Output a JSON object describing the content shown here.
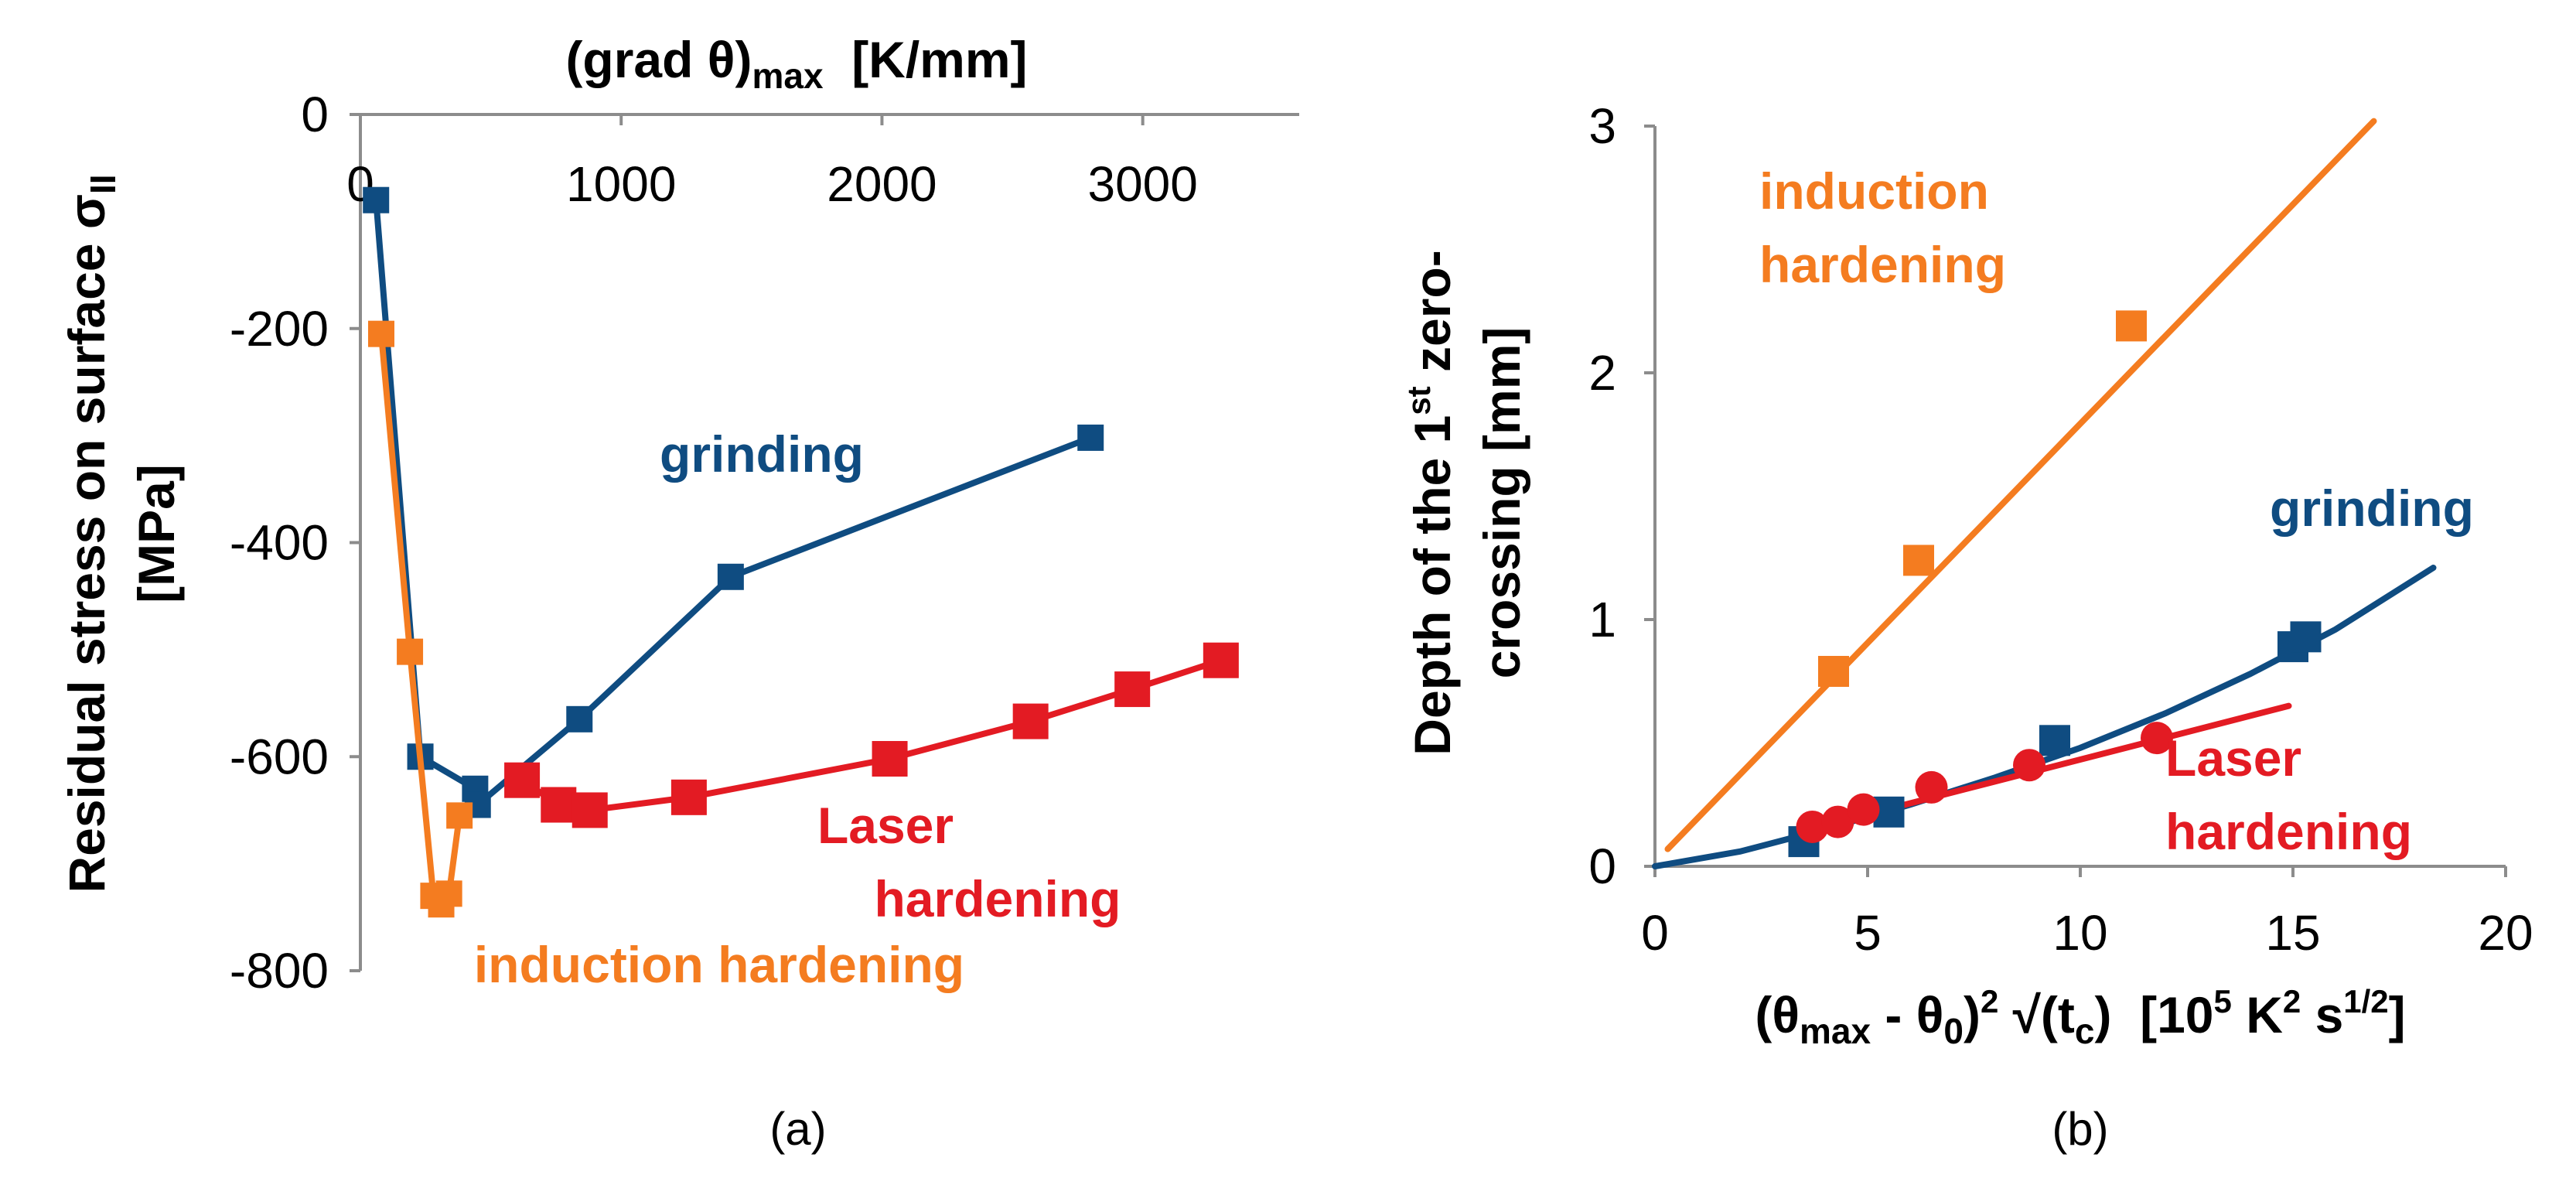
{
  "colors": {
    "grinding": "#0f4c81",
    "induction": "#f47c20",
    "laser": "#e31b23",
    "axis": "#8c8c8c"
  },
  "chart_data": [
    {
      "id": "a",
      "type": "line",
      "caption": "(a)",
      "xlabel": {
        "main": "(grad θ)",
        "sub": "max",
        "rest": "  [K/mm]"
      },
      "ylabel": {
        "line1": "Residual stress on surface σ",
        "line1_sub": "II",
        "line2": "[MPa]"
      },
      "x_ticks": [
        "0",
        "1000",
        "2000",
        "3000"
      ],
      "y_ticks": [
        "0",
        "-200",
        "-400",
        "-600",
        "-800"
      ],
      "xlim": [
        0,
        3600
      ],
      "ylim": [
        -800,
        0
      ],
      "series": [
        {
          "name": "grinding",
          "label": "grinding",
          "color": "#0f4c81",
          "x": [
            60,
            230,
            440,
            450,
            840,
            1420,
            2800
          ],
          "y": [
            -80,
            -600,
            -630,
            -645,
            -565,
            -432,
            -302
          ]
        },
        {
          "name": "induction hardening",
          "label": "induction hardening",
          "color": "#f47c20",
          "x": [
            80,
            190,
            280,
            310,
            340,
            380
          ],
          "y": [
            -205,
            -502,
            -730,
            -738,
            -728,
            -655
          ]
        },
        {
          "name": "Laser hardening",
          "label": [
            "Laser",
            "hardening"
          ],
          "color": "#e31b23",
          "x": [
            620,
            760,
            880,
            1260,
            2030,
            2570,
            2960,
            3300
          ],
          "y": [
            -622,
            -645,
            -650,
            -638,
            -602,
            -567,
            -537,
            -510
          ]
        }
      ]
    },
    {
      "id": "b",
      "type": "line",
      "caption": "(b)",
      "xlabel": {
        "p1": "(θ",
        "s1": "max",
        "p2": " - θ",
        "s2": "0",
        "p3": ")",
        "s3": "2",
        "p4": " √(t",
        "s4": "c",
        "p5": ")  [10",
        "s5": "5",
        "p6": " K",
        "s6": "2",
        "p7": " s",
        "s7": "1/2",
        "p8": "]"
      },
      "ylabel": {
        "line1_a": "Depth of the 1",
        "line1_sup": "st",
        "line1_b": " zero-",
        "line2": "crossing [mm]"
      },
      "x_ticks": [
        "0",
        "5",
        "10",
        "15",
        "20"
      ],
      "y_ticks": [
        "0",
        "1",
        "2",
        "3"
      ],
      "xlim": [
        0,
        20
      ],
      "ylim": [
        0,
        3
      ],
      "series": [
        {
          "name": "induction hardening",
          "label": [
            "induction",
            "hardening"
          ],
          "color": "#f47c20",
          "x": [
            4.2,
            6.2,
            11.2
          ],
          "y": [
            0.79,
            1.24,
            2.19
          ],
          "fit": {
            "x": [
              0.3,
              16.9
            ],
            "y": [
              0.07,
              3.02
            ]
          }
        },
        {
          "name": "grinding",
          "label": "grinding",
          "color": "#0f4c81",
          "x": [
            3.5,
            5.5,
            9.4,
            15.0,
            15.3
          ],
          "y": [
            0.1,
            0.22,
            0.51,
            0.89,
            0.93
          ],
          "fit": {
            "x": [
              0,
              2,
              4,
              6,
              8,
              10,
              12,
              14,
              16,
              18.3
            ],
            "y": [
              0,
              0.06,
              0.15,
              0.25,
              0.36,
              0.48,
              0.62,
              0.78,
              0.96,
              1.21
            ]
          }
        },
        {
          "name": "Laser hardening",
          "label": [
            "Laser",
            "hardening"
          ],
          "color": "#e31b23",
          "x": [
            3.7,
            4.3,
            4.9,
            6.5,
            8.8,
            11.8
          ],
          "y": [
            0.16,
            0.18,
            0.23,
            0.32,
            0.41,
            0.52
          ],
          "fit": {
            "x": [
              3.4,
              14.9
            ],
            "y": [
              0.14,
              0.65
            ]
          }
        }
      ]
    }
  ]
}
